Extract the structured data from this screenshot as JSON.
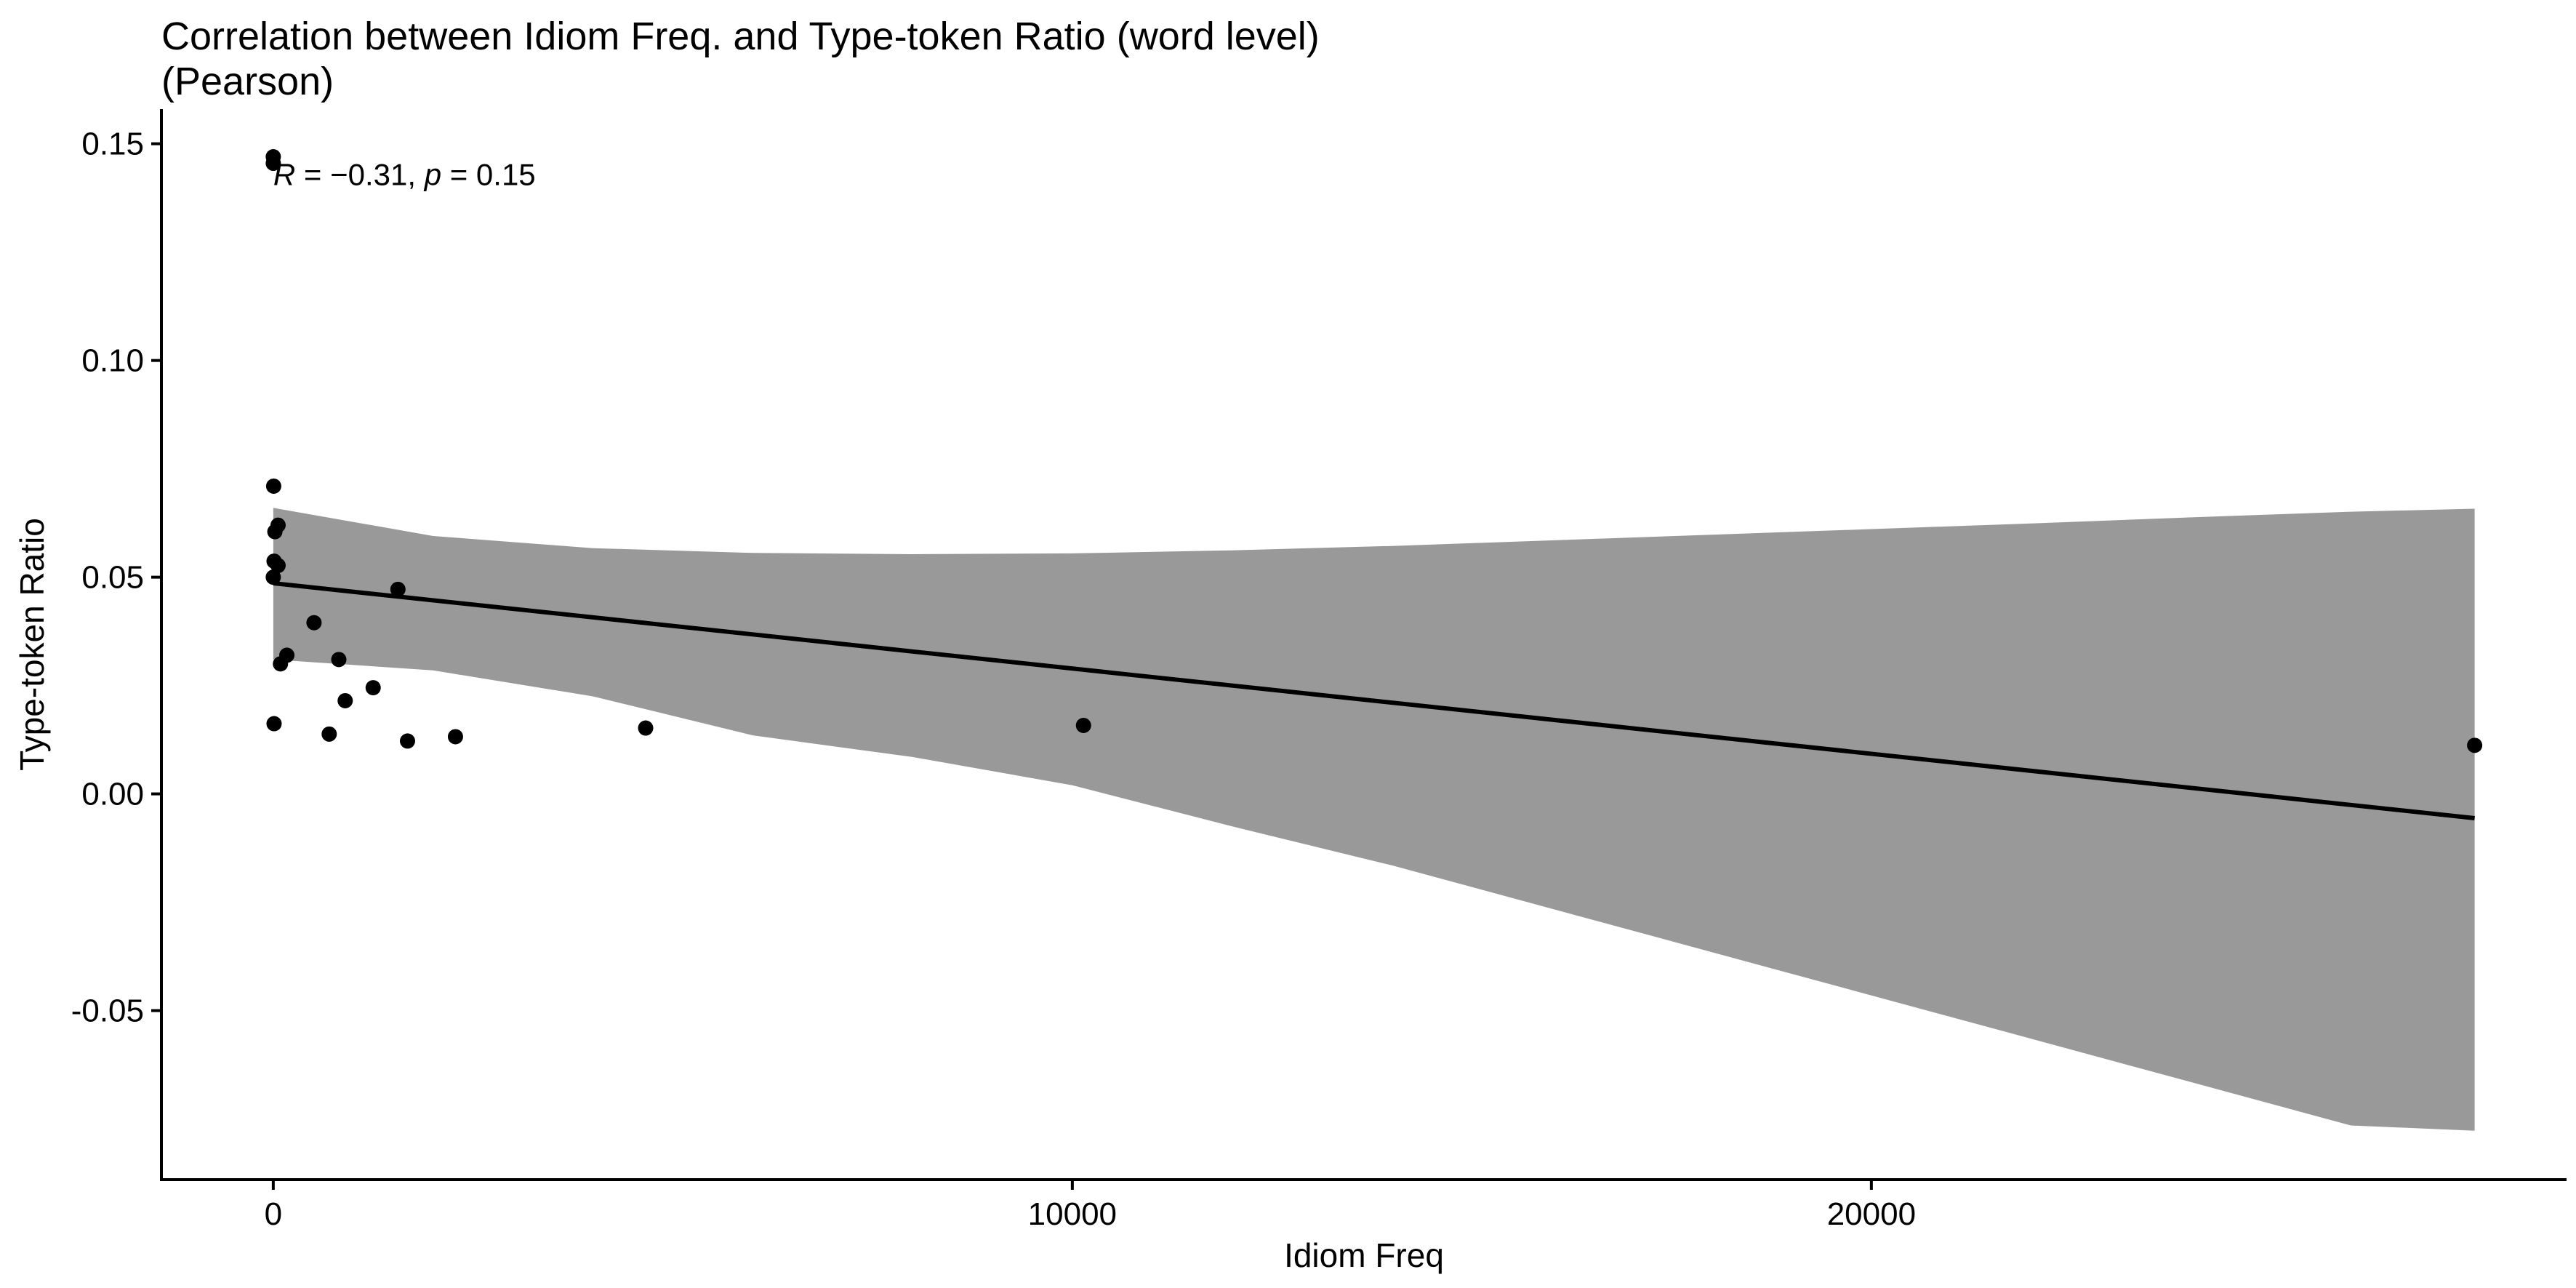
{
  "chart_data": {
    "type": "scatter",
    "title_lines": [
      "Correlation between Idiom Freq. and Type-token Ratio (word level)",
      "(Pearson)"
    ],
    "xlabel": "Idiom Freq",
    "ylabel": "Type-token Ratio",
    "xlim": [
      -1400,
      28700
    ],
    "ylim": [
      -0.089,
      0.158
    ],
    "x_ticks": [
      0,
      10000,
      20000
    ],
    "x_tick_labels": [
      "0",
      "10000",
      "20000"
    ],
    "y_ticks": [
      -0.05,
      0.0,
      0.05,
      0.1,
      0.15
    ],
    "y_tick_labels": [
      "-0.05",
      "0.00",
      "0.05",
      "0.10",
      "0.15"
    ],
    "grid": false,
    "legend": "none",
    "annotation": {
      "R_label": "R",
      "R_value": " = −0.31, ",
      "p_label": "p",
      "p_value": " = 0.15",
      "x": 0,
      "y": 0.1405
    },
    "point_color": "#000000",
    "band_color": "#999999",
    "line_color": "#000000",
    "points": [
      {
        "x": 0,
        "y": 0.147
      },
      {
        "x": 0,
        "y": 0.1455
      },
      {
        "x": 5,
        "y": 0.071
      },
      {
        "x": 60,
        "y": 0.062
      },
      {
        "x": 20,
        "y": 0.0605
      },
      {
        "x": 10,
        "y": 0.0537
      },
      {
        "x": 60,
        "y": 0.0527
      },
      {
        "x": 0,
        "y": 0.05
      },
      {
        "x": 10,
        "y": 0.0162
      },
      {
        "x": 90,
        "y": 0.03
      },
      {
        "x": 170,
        "y": 0.032
      },
      {
        "x": 510,
        "y": 0.0395
      },
      {
        "x": 700,
        "y": 0.0138
      },
      {
        "x": 820,
        "y": 0.031
      },
      {
        "x": 900,
        "y": 0.0215
      },
      {
        "x": 1250,
        "y": 0.0245
      },
      {
        "x": 1560,
        "y": 0.0472
      },
      {
        "x": 1680,
        "y": 0.0122
      },
      {
        "x": 2280,
        "y": 0.0132
      },
      {
        "x": 4660,
        "y": 0.0152
      },
      {
        "x": 10140,
        "y": 0.0158
      },
      {
        "x": 27550,
        "y": 0.0112
      }
    ],
    "fit_line": {
      "x": [
        0,
        27550
      ],
      "y": [
        0.0486,
        -0.0056
      ]
    },
    "confidence_band": {
      "x": [
        0,
        2000,
        4000,
        6000,
        8000,
        10000,
        12000,
        14000,
        16000,
        18000,
        20000,
        22000,
        24000,
        26000,
        27550
      ],
      "upper": [
        0.066,
        0.0595,
        0.0567,
        0.0556,
        0.0553,
        0.0555,
        0.0562,
        0.0572,
        0.0585,
        0.0598,
        0.0611,
        0.0624,
        0.0638,
        0.0651,
        0.0658
      ],
      "lower": [
        0.031,
        0.0285,
        0.0225,
        0.0135,
        0.0085,
        0.002,
        -0.0075,
        -0.0165,
        -0.0265,
        -0.0365,
        -0.0465,
        -0.0565,
        -0.0665,
        -0.0765,
        -0.0777
      ]
    }
  }
}
